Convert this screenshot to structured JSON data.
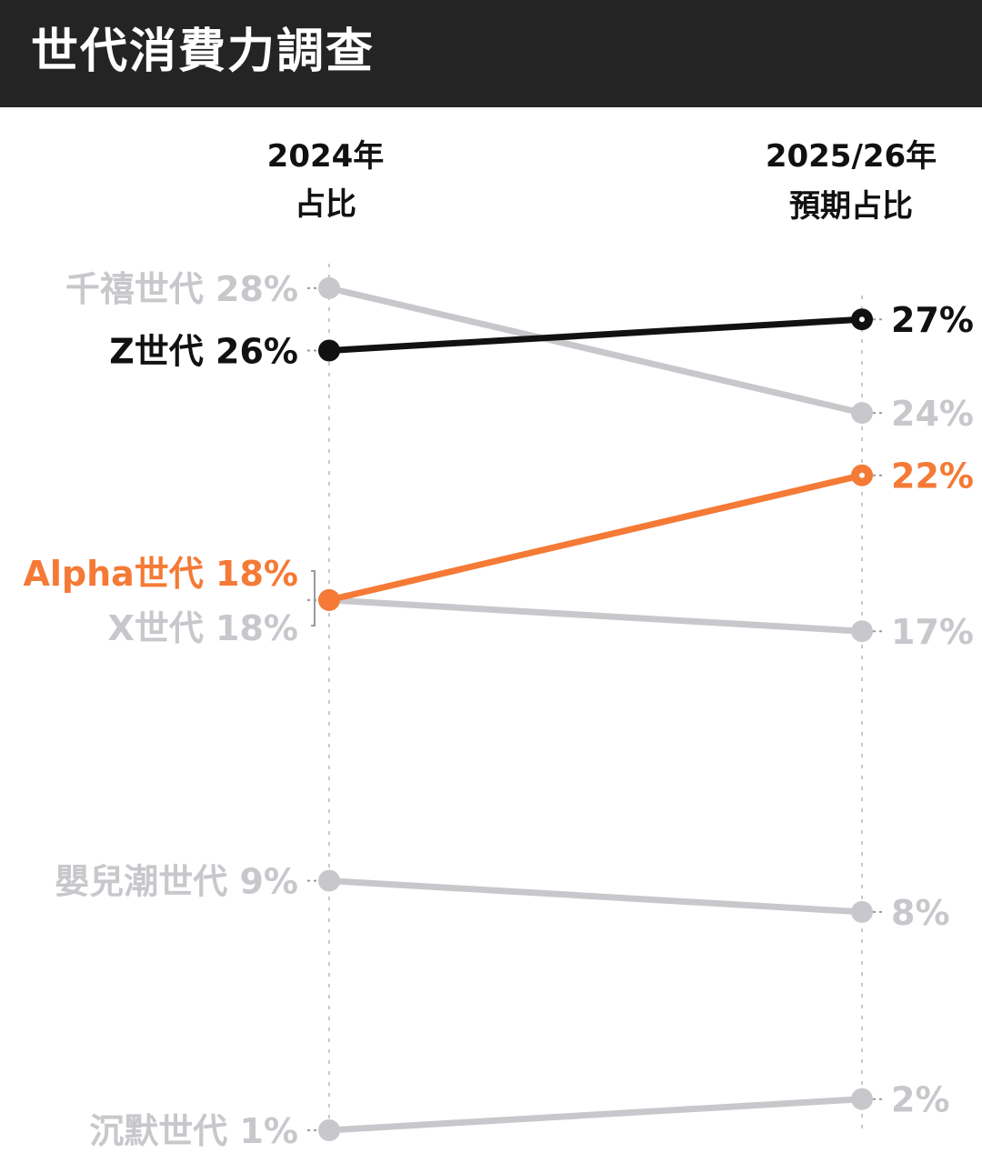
{
  "header": {
    "title": "世代消費力調查"
  },
  "chart_data": {
    "type": "slope",
    "columns": [
      {
        "line1": "2024年",
        "line2": "占比"
      },
      {
        "line1": "2025/26年",
        "line2": "預期占比"
      }
    ],
    "series": [
      {
        "name": "千禧世代",
        "start": 28,
        "end": 24,
        "start_label": "千禧世代 28%",
        "end_label": "24%",
        "color": "#c8c8cc"
      },
      {
        "name": "Z世代",
        "start": 26,
        "end": 27,
        "start_label": "Z世代 26%",
        "end_label": "27%",
        "color": "#111111"
      },
      {
        "name": "Alpha世代",
        "start": 18,
        "end": 22,
        "start_label": "Alpha世代 18%",
        "end_label": "22%",
        "color": "#f47a36"
      },
      {
        "name": "X世代",
        "start": 18,
        "end": 17,
        "start_label": "X世代 18%",
        "end_label": "17%",
        "color": "#c8c8cc"
      },
      {
        "name": "嬰兒潮世代",
        "start": 9,
        "end": 8,
        "start_label": "嬰兒潮世代 9%",
        "end_label": "8%",
        "color": "#c8c8cc"
      },
      {
        "name": "沉默世代",
        "start": 1,
        "end": 2,
        "start_label": "沉默世代 1%",
        "end_label": "2%",
        "color": "#c8c8cc"
      }
    ],
    "unit": "%"
  }
}
